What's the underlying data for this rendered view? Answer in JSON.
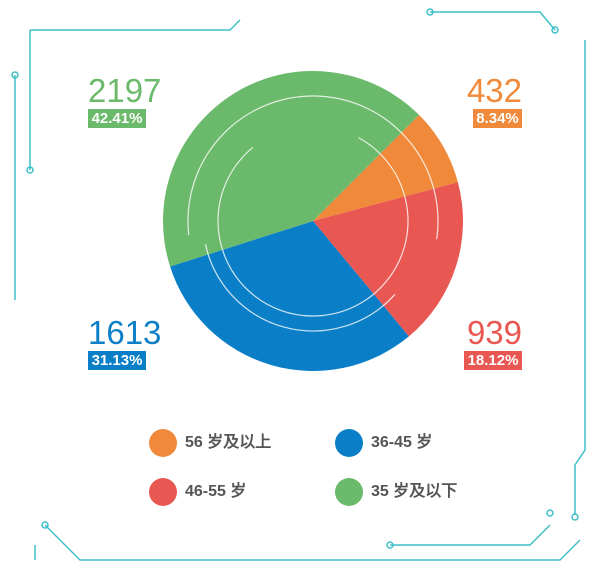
{
  "chart_data": {
    "type": "pie",
    "categories": [
      "56 岁及以上",
      "46-55 岁",
      "36-45 岁",
      "35 岁及以下"
    ],
    "values": [
      432,
      939,
      1613,
      2197
    ],
    "percent_labels": [
      "8.34%",
      "18.12%",
      "31.13%",
      "42.41%"
    ],
    "colors": [
      "#f08a3a",
      "#e95752",
      "#0a7fc8",
      "#6bb96a"
    ],
    "legend_order": [
      0,
      2,
      1,
      3
    ]
  }
}
